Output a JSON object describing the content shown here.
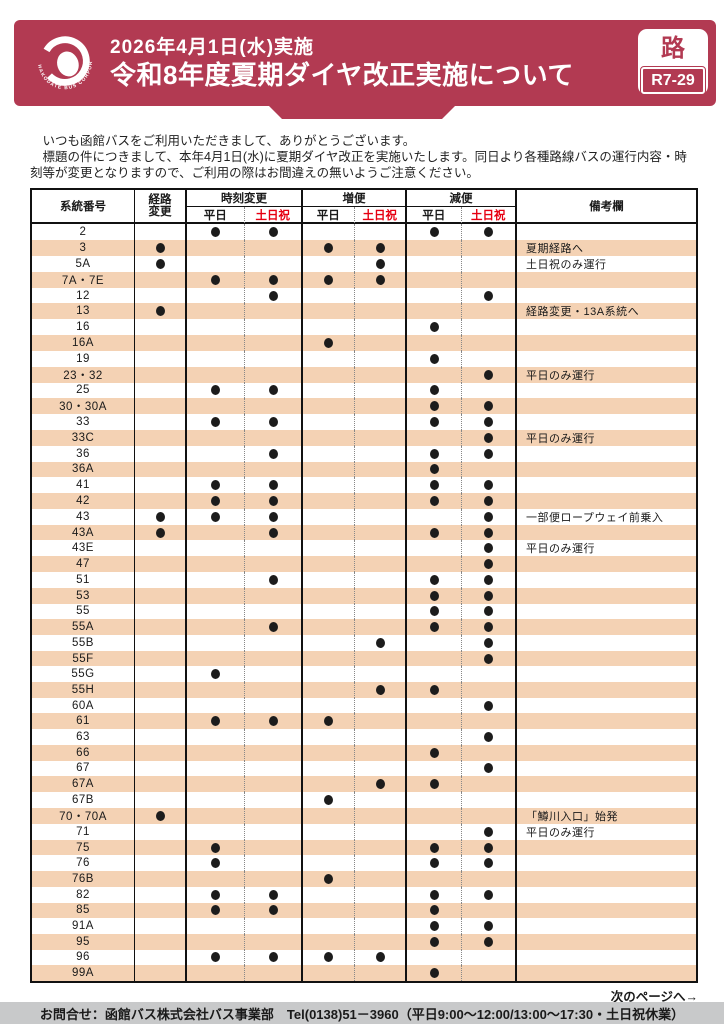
{
  "header": {
    "date_line": "2026年4月1日(水)実施",
    "title": "令和8年度夏期ダイヤ改正実施について",
    "badge_top": "路",
    "badge_code": "R7-29",
    "logo_text": "HAKODATE BUS CORPORATION"
  },
  "intro": {
    "lines": [
      "　いつも函館バスをご利用いただきまして、ありがとうございます。",
      "　標題の件につきまして、本年4月1日(水)に夏期ダイヤ改正を実施いたします。同日より各種路線バスの運行内容・時",
      "刻等が変更となりますので、ご利用の際はお間違えの無いようご注意ください。"
    ]
  },
  "table": {
    "headers": {
      "route_no": "系統番号",
      "keiro_line1": "経路",
      "keiro_line2": "変更",
      "jikoku": "時刻変更",
      "zobin": "増便",
      "genbin": "減便",
      "weekday": "平日",
      "holiday": "土日祝",
      "remarks": "備考欄"
    },
    "mark_columns": [
      "route-change",
      "time-change-weekday",
      "time-change-holiday",
      "increase-weekday",
      "increase-holiday",
      "decrease-weekday",
      "decrease-holiday"
    ],
    "rows": [
      {
        "no": "2",
        "marks": [
          0,
          1,
          1,
          0,
          0,
          1,
          1
        ],
        "remark": ""
      },
      {
        "no": "3",
        "marks": [
          1,
          0,
          0,
          1,
          1,
          0,
          0
        ],
        "remark": "夏期経路へ"
      },
      {
        "no": "5A",
        "marks": [
          1,
          0,
          0,
          0,
          1,
          0,
          0
        ],
        "remark": "土日祝のみ運行"
      },
      {
        "no": "7A・7E",
        "marks": [
          0,
          1,
          1,
          1,
          1,
          0,
          0
        ],
        "remark": ""
      },
      {
        "no": "12",
        "marks": [
          0,
          0,
          1,
          0,
          0,
          0,
          1
        ],
        "remark": ""
      },
      {
        "no": "13",
        "marks": [
          1,
          0,
          0,
          0,
          0,
          0,
          0
        ],
        "remark": "経路変更・13A系統へ"
      },
      {
        "no": "16",
        "marks": [
          0,
          0,
          0,
          0,
          0,
          1,
          0
        ],
        "remark": ""
      },
      {
        "no": "16A",
        "marks": [
          0,
          0,
          0,
          1,
          0,
          0,
          0
        ],
        "remark": ""
      },
      {
        "no": "19",
        "marks": [
          0,
          0,
          0,
          0,
          0,
          1,
          0
        ],
        "remark": ""
      },
      {
        "no": "23・32",
        "marks": [
          0,
          0,
          0,
          0,
          0,
          0,
          1
        ],
        "remark": "平日のみ運行"
      },
      {
        "no": "25",
        "marks": [
          0,
          1,
          1,
          0,
          0,
          1,
          0
        ],
        "remark": ""
      },
      {
        "no": "30・30A",
        "marks": [
          0,
          0,
          0,
          0,
          0,
          1,
          1
        ],
        "remark": ""
      },
      {
        "no": "33",
        "marks": [
          0,
          1,
          1,
          0,
          0,
          1,
          1
        ],
        "remark": ""
      },
      {
        "no": "33C",
        "marks": [
          0,
          0,
          0,
          0,
          0,
          0,
          1
        ],
        "remark": "平日のみ運行"
      },
      {
        "no": "36",
        "marks": [
          0,
          0,
          1,
          0,
          0,
          1,
          1
        ],
        "remark": ""
      },
      {
        "no": "36A",
        "marks": [
          0,
          0,
          0,
          0,
          0,
          1,
          0
        ],
        "remark": ""
      },
      {
        "no": "41",
        "marks": [
          0,
          1,
          1,
          0,
          0,
          1,
          1
        ],
        "remark": ""
      },
      {
        "no": "42",
        "marks": [
          0,
          1,
          1,
          0,
          0,
          1,
          1
        ],
        "remark": ""
      },
      {
        "no": "43",
        "marks": [
          1,
          1,
          1,
          0,
          0,
          0,
          1
        ],
        "remark": "一部便ロープウェイ前乗入"
      },
      {
        "no": "43A",
        "marks": [
          1,
          0,
          1,
          0,
          0,
          1,
          1
        ],
        "remark": ""
      },
      {
        "no": "43E",
        "marks": [
          0,
          0,
          0,
          0,
          0,
          0,
          1
        ],
        "remark": "平日のみ運行"
      },
      {
        "no": "47",
        "marks": [
          0,
          0,
          0,
          0,
          0,
          0,
          1
        ],
        "remark": ""
      },
      {
        "no": "51",
        "marks": [
          0,
          0,
          1,
          0,
          0,
          1,
          1
        ],
        "remark": ""
      },
      {
        "no": "53",
        "marks": [
          0,
          0,
          0,
          0,
          0,
          1,
          1
        ],
        "remark": ""
      },
      {
        "no": "55",
        "marks": [
          0,
          0,
          0,
          0,
          0,
          1,
          1
        ],
        "remark": ""
      },
      {
        "no": "55A",
        "marks": [
          0,
          0,
          1,
          0,
          0,
          1,
          1
        ],
        "remark": ""
      },
      {
        "no": "55B",
        "marks": [
          0,
          0,
          0,
          0,
          1,
          0,
          1
        ],
        "remark": ""
      },
      {
        "no": "55F",
        "marks": [
          0,
          0,
          0,
          0,
          0,
          0,
          1
        ],
        "remark": ""
      },
      {
        "no": "55G",
        "marks": [
          0,
          1,
          0,
          0,
          0,
          0,
          0
        ],
        "remark": ""
      },
      {
        "no": "55H",
        "marks": [
          0,
          0,
          0,
          0,
          1,
          1,
          0
        ],
        "remark": ""
      },
      {
        "no": "60A",
        "marks": [
          0,
          0,
          0,
          0,
          0,
          0,
          1
        ],
        "remark": ""
      },
      {
        "no": "61",
        "marks": [
          0,
          1,
          1,
          1,
          0,
          0,
          0
        ],
        "remark": ""
      },
      {
        "no": "63",
        "marks": [
          0,
          0,
          0,
          0,
          0,
          0,
          1
        ],
        "remark": ""
      },
      {
        "no": "66",
        "marks": [
          0,
          0,
          0,
          0,
          0,
          1,
          0
        ],
        "remark": ""
      },
      {
        "no": "67",
        "marks": [
          0,
          0,
          0,
          0,
          0,
          0,
          1
        ],
        "remark": ""
      },
      {
        "no": "67A",
        "marks": [
          0,
          0,
          0,
          0,
          1,
          1,
          0
        ],
        "remark": ""
      },
      {
        "no": "67B",
        "marks": [
          0,
          0,
          0,
          1,
          0,
          0,
          0
        ],
        "remark": ""
      },
      {
        "no": "70・70A",
        "marks": [
          1,
          0,
          0,
          0,
          0,
          0,
          0
        ],
        "remark": "「鱒川入口」始発"
      },
      {
        "no": "71",
        "marks": [
          0,
          0,
          0,
          0,
          0,
          0,
          1
        ],
        "remark": "平日のみ運行"
      },
      {
        "no": "75",
        "marks": [
          0,
          1,
          0,
          0,
          0,
          1,
          1
        ],
        "remark": ""
      },
      {
        "no": "76",
        "marks": [
          0,
          1,
          0,
          0,
          0,
          1,
          1
        ],
        "remark": ""
      },
      {
        "no": "76B",
        "marks": [
          0,
          0,
          0,
          1,
          0,
          0,
          0
        ],
        "remark": ""
      },
      {
        "no": "82",
        "marks": [
          0,
          1,
          1,
          0,
          0,
          1,
          1
        ],
        "remark": ""
      },
      {
        "no": "85",
        "marks": [
          0,
          1,
          1,
          0,
          0,
          1,
          0
        ],
        "remark": ""
      },
      {
        "no": "91A",
        "marks": [
          0,
          0,
          0,
          0,
          0,
          1,
          1
        ],
        "remark": ""
      },
      {
        "no": "95",
        "marks": [
          0,
          0,
          0,
          0,
          0,
          1,
          1
        ],
        "remark": ""
      },
      {
        "no": "96",
        "marks": [
          0,
          1,
          1,
          1,
          1,
          0,
          0
        ],
        "remark": ""
      },
      {
        "no": "99A",
        "marks": [
          0,
          0,
          0,
          0,
          0,
          1,
          0
        ],
        "remark": ""
      }
    ]
  },
  "footer": {
    "next_page": "次のページへ→",
    "contact": "お問合せ：函館バス株式会社バス事業部　Tel(0138)51－3960（平日9:00～12:00/13:00～17:30・土日祝休業）"
  },
  "colors": {
    "banner": "#b23a52",
    "row_tan": "#f4d2b4",
    "holiday_red": "#e60012",
    "footer_gray": "#c8c9ca",
    "dot_black": "#1c1c1c"
  }
}
